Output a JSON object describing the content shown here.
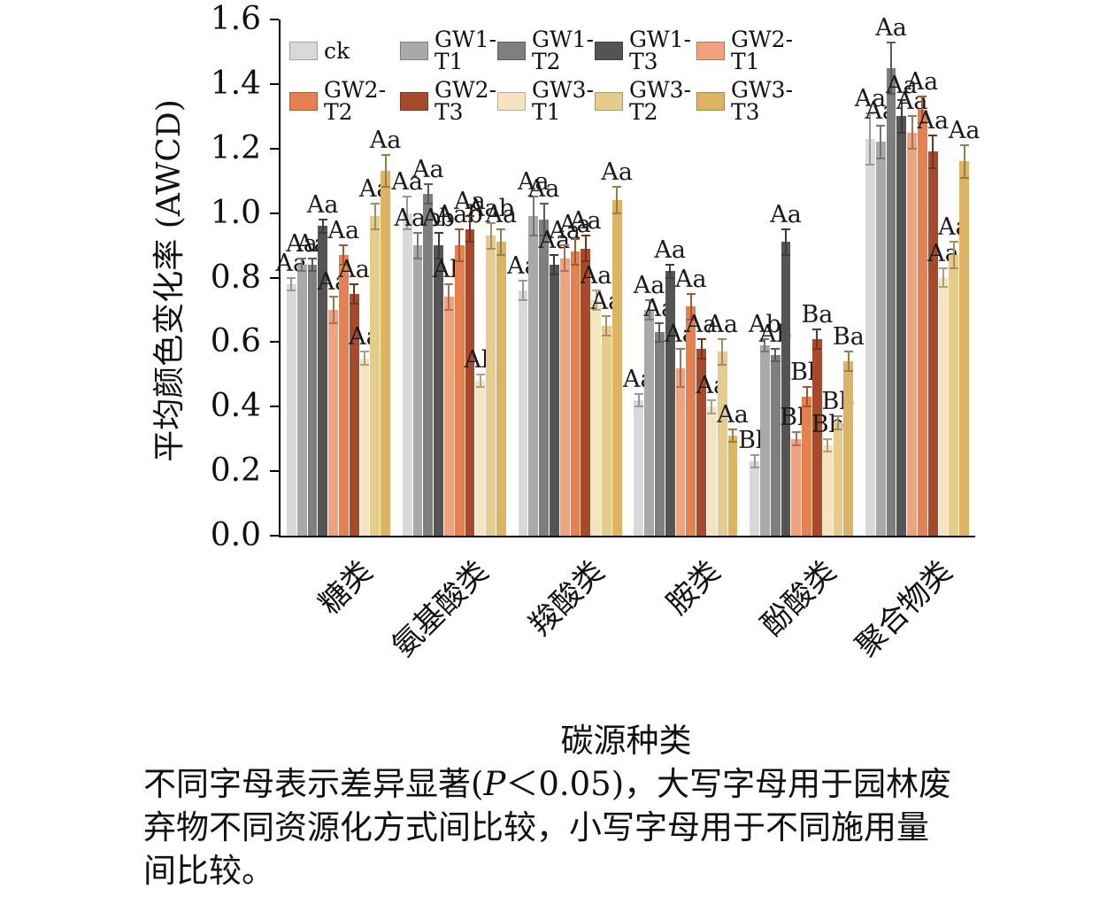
{
  "chart_data": {
    "type": "bar",
    "title": "",
    "xlabel": "碳源种类",
    "ylabel": "平均颜色变化率 (AWCD)",
    "ylim": [
      0,
      1.6
    ],
    "ytick_step": 0.2,
    "grid": false,
    "legend_position": "top-left-inside",
    "categories": [
      "糖类",
      "氨基酸类",
      "羧酸类",
      "胺类",
      "酚酸类",
      "聚合物类"
    ],
    "series": [
      {
        "name": "ck",
        "color": "#d9d9d9",
        "values": [
          0.78,
          1.0,
          0.76,
          0.42,
          0.23,
          1.23
        ],
        "errors": [
          0.02,
          0.05,
          0.03,
          0.02,
          0.02,
          0.08
        ],
        "labels": [
          "Aa",
          "Aa",
          "Aa",
          "Aa",
          "Bb",
          "Aa"
        ]
      },
      {
        "name": "GW1-T1",
        "color": "#a9a9a9",
        "values": [
          0.84,
          0.9,
          0.99,
          0.7,
          0.59,
          1.22
        ],
        "errors": [
          0.02,
          0.04,
          0.06,
          0.03,
          0.02,
          0.05
        ],
        "labels": [
          "Aa",
          "Aab",
          "Aa",
          "Aa",
          "Ab",
          "Aa"
        ]
      },
      {
        "name": "GW1-T2",
        "color": "#7f7f7f",
        "values": [
          0.84,
          1.06,
          0.98,
          0.63,
          0.56,
          1.45
        ],
        "errors": [
          0.02,
          0.03,
          0.05,
          0.03,
          0.02,
          0.08
        ],
        "labels": [
          "Aa",
          "Aa",
          "Aa",
          "Aa",
          "Ab",
          "Aa"
        ]
      },
      {
        "name": "GW1-T3",
        "color": "#545454",
        "values": [
          0.96,
          0.9,
          0.84,
          0.82,
          0.91,
          1.3
        ],
        "errors": [
          0.02,
          0.04,
          0.03,
          0.02,
          0.04,
          0.05
        ],
        "labels": [
          "Aa",
          "Ab",
          "Aa",
          "Aa",
          "Aa",
          "Aa"
        ]
      },
      {
        "name": "GW2-T1",
        "color": "#f2a17d",
        "values": [
          0.7,
          0.74,
          0.86,
          0.52,
          0.3,
          1.25
        ],
        "errors": [
          0.04,
          0.04,
          0.04,
          0.06,
          0.02,
          0.05
        ],
        "labels": [
          "Aa",
          "Ab",
          "Aa",
          "Aa",
          "Bb",
          "Aa"
        ]
      },
      {
        "name": "GW2-T2",
        "color": "#e6804f",
        "values": [
          0.87,
          0.9,
          0.88,
          0.71,
          0.43,
          1.32
        ],
        "errors": [
          0.03,
          0.05,
          0.04,
          0.04,
          0.03,
          0.04
        ],
        "labels": [
          "Aa",
          "Aab",
          "Aa",
          "Aa",
          "Bb",
          "Aa"
        ]
      },
      {
        "name": "GW2-T3",
        "color": "#a7492b",
        "values": [
          0.75,
          0.95,
          0.89,
          0.58,
          0.61,
          1.19
        ],
        "errors": [
          0.03,
          0.04,
          0.04,
          0.03,
          0.03,
          0.05
        ],
        "labels": [
          "Aa",
          "Aa",
          "Aa",
          "Aa",
          "Ba",
          "Aa"
        ]
      },
      {
        "name": "GW3-T1",
        "color": "#f4e4c0",
        "values": [
          0.55,
          0.48,
          0.73,
          0.4,
          0.28,
          0.8
        ],
        "errors": [
          0.02,
          0.02,
          0.03,
          0.02,
          0.02,
          0.03
        ],
        "labels": [
          "Aa",
          "Ab",
          "Aa",
          "Aa",
          "Bb",
          "Aa"
        ]
      },
      {
        "name": "GW3-T2",
        "color": "#e6cc8c",
        "values": [
          0.99,
          0.93,
          0.65,
          0.57,
          0.35,
          0.87
        ],
        "errors": [
          0.04,
          0.04,
          0.03,
          0.04,
          0.02,
          0.04
        ],
        "labels": [
          "Aa",
          "Aab",
          "Aa",
          "Aa",
          "Bb",
          "Aa"
        ]
      },
      {
        "name": "GW3-T3",
        "color": "#dcb464",
        "values": [
          1.13,
          0.91,
          1.04,
          0.31,
          0.54,
          1.16
        ],
        "errors": [
          0.05,
          0.04,
          0.04,
          0.02,
          0.03,
          0.05
        ],
        "labels": [
          "Aa",
          "Aa",
          "Aa",
          "Aa",
          "Ba",
          "Aa"
        ]
      }
    ]
  },
  "caption": {
    "lines": [
      {
        "pre": "不同字母表示差异显著(",
        "italic": "P",
        "post": "＜0.05)，大写字母用于园林废"
      },
      {
        "pre": "弃物不同资源化方式间比较，小写字母用于不同施用量"
      },
      {
        "pre": "间比较。"
      }
    ]
  }
}
